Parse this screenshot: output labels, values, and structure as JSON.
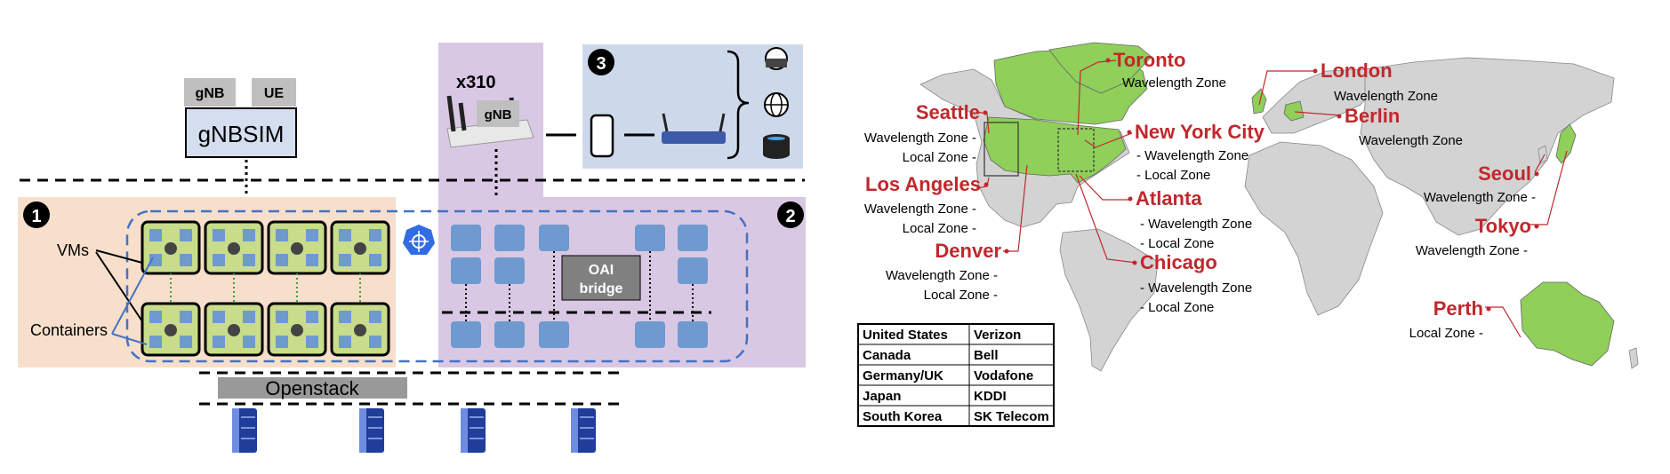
{
  "architecture": {
    "gnbsim": {
      "title": "gNBSIM",
      "gnb_tag": "gNB",
      "ue_tag": "UE"
    },
    "radio": {
      "model": "x310",
      "gnb_tag": "gNB"
    },
    "labels": {
      "vms": "VMs",
      "containers": "Containers",
      "oai_bridge_line1": "OAI",
      "oai_bridge_line2": "bridge",
      "openstack": "Openstack"
    },
    "badges": [
      "1",
      "2",
      "3"
    ],
    "colors": {
      "zone1": "#f7dfcb",
      "zone2": "#d9c8e4",
      "zone3": "#cdd9ea",
      "gnbsim_fill": "#d5deef",
      "vm_fill": "#c8dc8c",
      "container": "#6e9ad0",
      "dashed_blue": "#4472c4",
      "server": "#1f3d99"
    }
  },
  "map": {
    "colors": {
      "highlight": "#8fcf5a",
      "land": "#d3d3d3",
      "city_text": "#c0282d"
    },
    "cities": [
      {
        "name": "Toronto",
        "zones": [
          "Wavelength Zone"
        ]
      },
      {
        "name": "London",
        "zones": [
          "Wavelength Zone"
        ]
      },
      {
        "name": "Berlin",
        "zones": [
          "Wavelength Zone"
        ]
      },
      {
        "name": "Seattle",
        "zones": [
          "Wavelength Zone -",
          "Local Zone -"
        ]
      },
      {
        "name": "New York City",
        "zones": [
          "- Wavelength Zone",
          "- Local Zone"
        ]
      },
      {
        "name": "Los Angeles",
        "zones": [
          "Wavelength Zone -",
          "Local Zone -"
        ]
      },
      {
        "name": "Atlanta",
        "zones": [
          "- Wavelength Zone",
          "- Local Zone"
        ]
      },
      {
        "name": "Denver",
        "zones": [
          "Wavelength Zone -",
          "Local Zone -"
        ]
      },
      {
        "name": "Chicago",
        "zones": [
          "- Wavelength Zone",
          "- Local Zone"
        ]
      },
      {
        "name": "Seoul",
        "zones": [
          "Wavelength Zone -"
        ]
      },
      {
        "name": "Tokyo",
        "zones": [
          "Wavelength Zone -"
        ]
      },
      {
        "name": "Perth",
        "zones": [
          "Local Zone -"
        ]
      }
    ],
    "carriers": [
      {
        "country": "United States",
        "carrier": "Verizon"
      },
      {
        "country": "Canada",
        "carrier": "Bell"
      },
      {
        "country": "Germany/UK",
        "carrier": "Vodafone"
      },
      {
        "country": "Japan",
        "carrier": "KDDI"
      },
      {
        "country": "South Korea",
        "carrier": "SK Telecom"
      }
    ]
  }
}
